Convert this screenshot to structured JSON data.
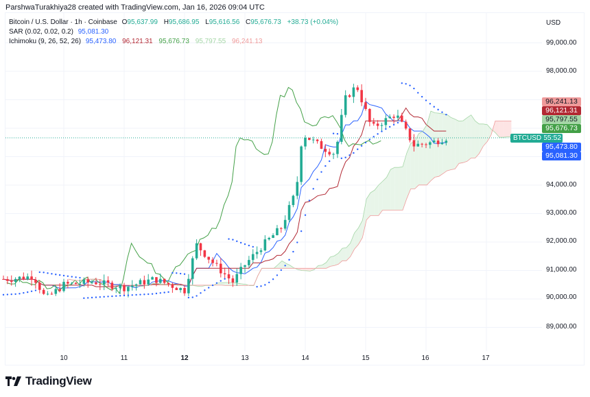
{
  "header": {
    "credit": "ParshwaTurakhiya28 created with TradingView.com, Jan 16, 2026 09:04 UTC"
  },
  "legend": {
    "symbol": "Bitcoin / U.S. Dollar · 1h · Coinbase",
    "open_label": "O",
    "open": "95,637.99",
    "high_label": "H",
    "high": "95,686.95",
    "low_label": "L",
    "low": "95,616.56",
    "close_label": "C",
    "close": "95,676.73",
    "change": "+38.73 (+0.04%)",
    "sar_label": "SAR (0.02, 0.02, 0.2)",
    "sar_value": "95,081.30",
    "ichimoku_label": "Ichimoku (9, 26, 52, 26)",
    "ichimoku_values": [
      "95,473.80",
      "96,121.31",
      "95,676.73",
      "95,797.55",
      "96,241.13"
    ]
  },
  "price_axis": {
    "currency": "USD",
    "ticks": [
      "99,000.00",
      "98,000.00",
      "94,000.00",
      "93,000.00",
      "92,000.00",
      "91,000.00",
      "90,000.00",
      "89,000.00"
    ]
  },
  "time_axis": {
    "ticks": [
      "10",
      "11",
      "12",
      "13",
      "14",
      "15",
      "16",
      "17"
    ],
    "bold_tick": "12"
  },
  "price_tags": [
    {
      "label": "96,241.13",
      "color": "#ef9a9a",
      "text_color": "#131722"
    },
    {
      "label": "96,121.31",
      "color": "#b22833",
      "text_color": "#ffffff"
    },
    {
      "label": "95,797.55",
      "color": "#a5d6a7",
      "text_color": "#131722"
    },
    {
      "label": "95,676.73",
      "color": "#43a047",
      "text_color": "#ffffff"
    },
    {
      "label": "55:52",
      "color": "#22ab94",
      "text_color": "#ffffff"
    },
    {
      "label": "95,473.80",
      "color": "#2962ff",
      "text_color": "#ffffff"
    },
    {
      "label": "95,081.30",
      "color": "#2962ff",
      "text_color": "#ffffff"
    }
  ],
  "symbol_tag": "BTCUSD",
  "colors": {
    "up": "#22ab94",
    "down": "#f23645",
    "conversion": "#2962ff",
    "base": "#b22833",
    "lagging": "#43a047",
    "sar": "#2962ff",
    "cloud_up": "#e8f5e9",
    "cloud_down": "#fde4e4"
  },
  "branding": {
    "logo_text": "TradingView"
  },
  "chart_data": {
    "type": "candlestick",
    "title": "Bitcoin / U.S. Dollar · 1h · Coinbase",
    "xlabel": "",
    "ylabel": "USD",
    "ylim": [
      88500,
      99500
    ],
    "x_ticks": [
      "10",
      "11",
      "12",
      "13",
      "14",
      "15",
      "16",
      "17"
    ],
    "last_close": 95676.73,
    "indicators": {
      "sar": 95081.3,
      "ichimoku_conversion": 95473.8,
      "ichimoku_base": 96121.31,
      "ichimoku_lagging": 95676.73,
      "ichimoku_span_a": 95797.55,
      "ichimoku_span_b": 96241.13
    },
    "close_path": [
      {
        "day": 9.1,
        "price": 90700
      },
      {
        "day": 9.5,
        "price": 90800
      },
      {
        "day": 9.7,
        "price": 90000
      },
      {
        "day": 10.0,
        "price": 90500
      },
      {
        "day": 10.5,
        "price": 90600
      },
      {
        "day": 11.0,
        "price": 90400
      },
      {
        "day": 11.5,
        "price": 90700
      },
      {
        "day": 12.0,
        "price": 90300
      },
      {
        "day": 12.2,
        "price": 91900
      },
      {
        "day": 12.5,
        "price": 91200
      },
      {
        "day": 12.8,
        "price": 90600
      },
      {
        "day": 13.0,
        "price": 91200
      },
      {
        "day": 13.3,
        "price": 91900
      },
      {
        "day": 13.6,
        "price": 92500
      },
      {
        "day": 13.85,
        "price": 93800
      },
      {
        "day": 13.95,
        "price": 95800
      },
      {
        "day": 14.3,
        "price": 95300
      },
      {
        "day": 14.5,
        "price": 95100
      },
      {
        "day": 14.65,
        "price": 97000
      },
      {
        "day": 14.85,
        "price": 97500
      },
      {
        "day": 15.1,
        "price": 96000
      },
      {
        "day": 15.5,
        "price": 96500
      },
      {
        "day": 15.8,
        "price": 95400
      },
      {
        "day": 16.1,
        "price": 95500
      },
      {
        "day": 16.35,
        "price": 95677
      }
    ]
  }
}
